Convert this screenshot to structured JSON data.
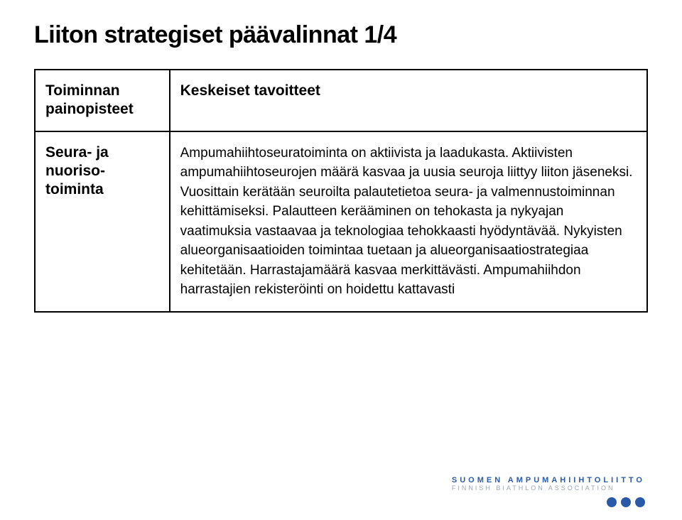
{
  "title": "Liiton strategiset päävalinnat 1/4",
  "table": {
    "header_left": "Toiminnan painopisteet",
    "header_right": "Keskeiset tavoitteet",
    "row1_left_line1": "Seura- ja",
    "row1_left_line2": "nuoriso-",
    "row1_left_line3": "toiminta",
    "row1_right": "Ampumahiihtoseuratoiminta on aktiivista ja laadukasta. Aktiivisten ampumahiihtoseurojen määrä kasvaa ja uusia seuroja liittyy liiton jäseneksi. Vuosittain kerätään seuroilta palautetietoa seura- ja valmennustoiminnan kehittämiseksi. Palautteen kerääminen on tehokasta ja nykyajan vaatimuksia vastaavaa ja teknologiaa tehokkaasti hyödyntävää. Nykyisten alueorganisaatioiden toimintaa tuetaan ja alueorganisaatiostrategiaa kehitetään. Harrastajamäärä kasvaa merkittävästi. Ampumahiihdon harrastajien rekisteröinti on hoidettu kattavasti"
  },
  "footer": {
    "logo_line1": "SUOMEN AMPUMAHIIHTOLIITTO",
    "logo_line2": "FINNISH BIATHLON ASSOCIATION",
    "accent_color": "#2a5aa7"
  }
}
